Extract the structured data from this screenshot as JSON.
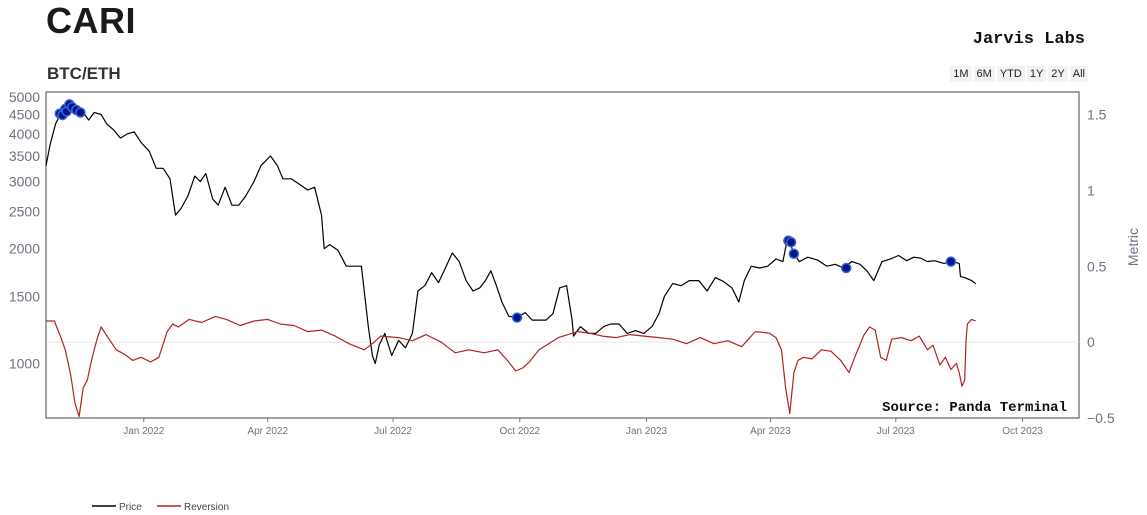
{
  "header": {
    "title": "CARI",
    "subtitle": "BTC/ETH",
    "brand": "Jarvis Labs",
    "source_note": "Source: Panda Terminal"
  },
  "range_buttons": [
    "1M",
    "6M",
    "YTD",
    "1Y",
    "2Y",
    "All"
  ],
  "colors": {
    "price": "#000000",
    "reversion": "#b22222",
    "markers": "#00158a",
    "marker_highlight": "#3b63d6"
  },
  "chart_data": {
    "type": "line",
    "title": "BTC/ETH",
    "x_tick_labels": [
      "Jan 2022",
      "Apr 2022",
      "Jul 2022",
      "Oct 2022",
      "Jan 2023",
      "Apr 2023",
      "Jul 2023",
      "Oct 2023"
    ],
    "x_ticks": [
      "2022-01-01",
      "2022-04-01",
      "2022-07-01",
      "2022-10-01",
      "2023-01-01",
      "2023-04-01",
      "2023-07-01",
      "2023-10-01"
    ],
    "xlim": [
      "2021-10-22",
      "2023-11-11"
    ],
    "y_left": {
      "scale": "log",
      "lim": [
        720,
        5150
      ],
      "ticks": [
        1000,
        1500,
        2000,
        2500,
        3000,
        3500,
        4000,
        4500,
        5000
      ]
    },
    "y_right": {
      "label": "Metric",
      "lim": [
        -0.5,
        1.65
      ],
      "ticks": [
        -0.5,
        0,
        0.5,
        1,
        1.5
      ],
      "tick_labels": [
        "−0.5",
        "0",
        "0.5",
        "1",
        "1.5"
      ]
    },
    "legend": {
      "position": "bottom-left",
      "entries": [
        "Price",
        "Reversion"
      ]
    },
    "series": [
      {
        "name": "Price",
        "axis": "left",
        "points": [
          [
            "2021-10-22",
            3300
          ],
          [
            "2021-10-25",
            3750
          ],
          [
            "2021-10-29",
            4250
          ],
          [
            "2021-11-02",
            4550
          ],
          [
            "2021-11-06",
            4620
          ],
          [
            "2021-11-08",
            4750
          ],
          [
            "2021-11-10",
            4700
          ],
          [
            "2021-11-14",
            4600
          ],
          [
            "2021-11-18",
            4550
          ],
          [
            "2021-11-22",
            4350
          ],
          [
            "2021-11-26",
            4550
          ],
          [
            "2021-12-01",
            4500
          ],
          [
            "2021-12-05",
            4250
          ],
          [
            "2021-12-10",
            4100
          ],
          [
            "2021-12-15",
            3900
          ],
          [
            "2021-12-20",
            4000
          ],
          [
            "2021-12-25",
            4050
          ],
          [
            "2021-12-30",
            3800
          ],
          [
            "2022-01-05",
            3600
          ],
          [
            "2022-01-10",
            3250
          ],
          [
            "2022-01-15",
            3250
          ],
          [
            "2022-01-20",
            3050
          ],
          [
            "2022-01-24",
            2450
          ],
          [
            "2022-01-28",
            2550
          ],
          [
            "2022-02-02",
            2750
          ],
          [
            "2022-02-07",
            3100
          ],
          [
            "2022-02-11",
            3000
          ],
          [
            "2022-02-15",
            3150
          ],
          [
            "2022-02-20",
            2700
          ],
          [
            "2022-02-24",
            2600
          ],
          [
            "2022-03-01",
            2900
          ],
          [
            "2022-03-06",
            2600
          ],
          [
            "2022-03-11",
            2600
          ],
          [
            "2022-03-16",
            2750
          ],
          [
            "2022-03-22",
            3000
          ],
          [
            "2022-03-27",
            3300
          ],
          [
            "2022-04-03",
            3500
          ],
          [
            "2022-04-08",
            3300
          ],
          [
            "2022-04-12",
            3050
          ],
          [
            "2022-04-18",
            3050
          ],
          [
            "2022-04-24",
            2950
          ],
          [
            "2022-04-30",
            2850
          ],
          [
            "2022-05-05",
            2900
          ],
          [
            "2022-05-10",
            2450
          ],
          [
            "2022-05-12",
            2000
          ],
          [
            "2022-05-16",
            2050
          ],
          [
            "2022-05-22",
            1980
          ],
          [
            "2022-05-28",
            1800
          ],
          [
            "2022-06-03",
            1800
          ],
          [
            "2022-06-08",
            1800
          ],
          [
            "2022-06-13",
            1250
          ],
          [
            "2022-06-16",
            1050
          ],
          [
            "2022-06-18",
            1000
          ],
          [
            "2022-06-21",
            1120
          ],
          [
            "2022-06-25",
            1200
          ],
          [
            "2022-06-30",
            1050
          ],
          [
            "2022-07-05",
            1150
          ],
          [
            "2022-07-10",
            1100
          ],
          [
            "2022-07-15",
            1200
          ],
          [
            "2022-07-19",
            1550
          ],
          [
            "2022-07-24",
            1600
          ],
          [
            "2022-07-29",
            1730
          ],
          [
            "2022-08-03",
            1630
          ],
          [
            "2022-08-08",
            1780
          ],
          [
            "2022-08-13",
            1950
          ],
          [
            "2022-08-18",
            1850
          ],
          [
            "2022-08-23",
            1650
          ],
          [
            "2022-08-28",
            1550
          ],
          [
            "2022-09-02",
            1580
          ],
          [
            "2022-09-06",
            1650
          ],
          [
            "2022-09-10",
            1750
          ],
          [
            "2022-09-14",
            1600
          ],
          [
            "2022-09-18",
            1450
          ],
          [
            "2022-09-23",
            1330
          ],
          [
            "2022-09-29",
            1320
          ],
          [
            "2022-10-05",
            1360
          ],
          [
            "2022-10-10",
            1300
          ],
          [
            "2022-10-15",
            1300
          ],
          [
            "2022-10-20",
            1300
          ],
          [
            "2022-10-25",
            1350
          ],
          [
            "2022-10-30",
            1580
          ],
          [
            "2022-11-04",
            1600
          ],
          [
            "2022-11-08",
            1300
          ],
          [
            "2022-11-09",
            1180
          ],
          [
            "2022-11-14",
            1250
          ],
          [
            "2022-11-20",
            1200
          ],
          [
            "2022-11-25",
            1200
          ],
          [
            "2022-12-01",
            1250
          ],
          [
            "2022-12-06",
            1270
          ],
          [
            "2022-12-12",
            1270
          ],
          [
            "2022-12-18",
            1200
          ],
          [
            "2022-12-24",
            1220
          ],
          [
            "2022-12-30",
            1200
          ],
          [
            "2023-01-05",
            1250
          ],
          [
            "2023-01-10",
            1350
          ],
          [
            "2023-01-14",
            1500
          ],
          [
            "2023-01-20",
            1620
          ],
          [
            "2023-01-26",
            1600
          ],
          [
            "2023-02-01",
            1650
          ],
          [
            "2023-02-08",
            1650
          ],
          [
            "2023-02-14",
            1550
          ],
          [
            "2023-02-20",
            1680
          ],
          [
            "2023-02-26",
            1640
          ],
          [
            "2023-03-04",
            1580
          ],
          [
            "2023-03-09",
            1450
          ],
          [
            "2023-03-13",
            1650
          ],
          [
            "2023-03-18",
            1800
          ],
          [
            "2023-03-24",
            1780
          ],
          [
            "2023-03-30",
            1800
          ],
          [
            "2023-04-05",
            1880
          ],
          [
            "2023-04-10",
            1850
          ],
          [
            "2023-04-13",
            2100
          ],
          [
            "2023-04-15",
            2080
          ],
          [
            "2023-04-18",
            1940
          ],
          [
            "2023-04-22",
            1850
          ],
          [
            "2023-04-28",
            1900
          ],
          [
            "2023-05-05",
            1870
          ],
          [
            "2023-05-12",
            1800
          ],
          [
            "2023-05-18",
            1820
          ],
          [
            "2023-05-24",
            1780
          ],
          [
            "2023-05-30",
            1850
          ],
          [
            "2023-06-05",
            1820
          ],
          [
            "2023-06-10",
            1750
          ],
          [
            "2023-06-15",
            1650
          ],
          [
            "2023-06-21",
            1850
          ],
          [
            "2023-06-27",
            1880
          ],
          [
            "2023-07-03",
            1920
          ],
          [
            "2023-07-09",
            1860
          ],
          [
            "2023-07-14",
            1900
          ],
          [
            "2023-07-19",
            1890
          ],
          [
            "2023-07-24",
            1850
          ],
          [
            "2023-07-29",
            1860
          ],
          [
            "2023-08-05",
            1830
          ],
          [
            "2023-08-11",
            1850
          ],
          [
            "2023-08-16",
            1830
          ],
          [
            "2023-08-17",
            1690
          ],
          [
            "2023-08-20",
            1680
          ],
          [
            "2023-08-25",
            1650
          ],
          [
            "2023-08-28",
            1620
          ]
        ]
      },
      {
        "name": "Reversion",
        "axis": "right",
        "points": [
          [
            "2021-10-22",
            0.14
          ],
          [
            "2021-10-28",
            0.14
          ],
          [
            "2021-11-01",
            0.05
          ],
          [
            "2021-11-05",
            -0.05
          ],
          [
            "2021-11-09",
            -0.22
          ],
          [
            "2021-11-12",
            -0.4
          ],
          [
            "2021-11-15",
            -0.49
          ],
          [
            "2021-11-18",
            -0.3
          ],
          [
            "2021-11-21",
            -0.25
          ],
          [
            "2021-11-24",
            -0.12
          ],
          [
            "2021-11-28",
            0.02
          ],
          [
            "2021-12-01",
            0.1
          ],
          [
            "2021-12-06",
            0.03
          ],
          [
            "2021-12-12",
            -0.05
          ],
          [
            "2021-12-18",
            -0.08
          ],
          [
            "2021-12-24",
            -0.12
          ],
          [
            "2021-12-30",
            -0.1
          ],
          [
            "2022-01-06",
            -0.13
          ],
          [
            "2022-01-12",
            -0.1
          ],
          [
            "2022-01-18",
            0.07
          ],
          [
            "2022-01-22",
            0.12
          ],
          [
            "2022-01-26",
            0.1
          ],
          [
            "2022-02-03",
            0.15
          ],
          [
            "2022-02-12",
            0.13
          ],
          [
            "2022-02-22",
            0.17
          ],
          [
            "2022-03-02",
            0.15
          ],
          [
            "2022-03-12",
            0.11
          ],
          [
            "2022-03-22",
            0.14
          ],
          [
            "2022-04-01",
            0.15
          ],
          [
            "2022-04-10",
            0.12
          ],
          [
            "2022-04-20",
            0.11
          ],
          [
            "2022-04-30",
            0.07
          ],
          [
            "2022-05-10",
            0.08
          ],
          [
            "2022-05-20",
            0.04
          ],
          [
            "2022-05-30",
            -0.01
          ],
          [
            "2022-06-10",
            -0.05
          ],
          [
            "2022-06-16",
            -0.01
          ],
          [
            "2022-06-22",
            0.04
          ],
          [
            "2022-07-05",
            0.03
          ],
          [
            "2022-07-15",
            0.01
          ],
          [
            "2022-07-25",
            0.05
          ],
          [
            "2022-08-05",
            0.0
          ],
          [
            "2022-08-15",
            -0.07
          ],
          [
            "2022-08-25",
            -0.05
          ],
          [
            "2022-09-05",
            -0.07
          ],
          [
            "2022-09-15",
            -0.05
          ],
          [
            "2022-09-22",
            -0.12
          ],
          [
            "2022-09-28",
            -0.19
          ],
          [
            "2022-10-03",
            -0.17
          ],
          [
            "2022-10-08",
            -0.13
          ],
          [
            "2022-10-15",
            -0.05
          ],
          [
            "2022-10-22",
            -0.01
          ],
          [
            "2022-10-29",
            0.03
          ],
          [
            "2022-11-05",
            0.05
          ],
          [
            "2022-11-12",
            0.07
          ],
          [
            "2022-11-20",
            0.06
          ],
          [
            "2022-11-30",
            0.04
          ],
          [
            "2022-12-10",
            0.03
          ],
          [
            "2022-12-20",
            0.05
          ],
          [
            "2022-12-30",
            0.04
          ],
          [
            "2023-01-10",
            0.03
          ],
          [
            "2023-01-20",
            0.02
          ],
          [
            "2023-01-30",
            -0.01
          ],
          [
            "2023-02-09",
            0.03
          ],
          [
            "2023-02-19",
            -0.01
          ],
          [
            "2023-03-01",
            0.01
          ],
          [
            "2023-03-11",
            -0.03
          ],
          [
            "2023-03-21",
            0.07
          ],
          [
            "2023-03-31",
            0.06
          ],
          [
            "2023-04-05",
            0.03
          ],
          [
            "2023-04-09",
            -0.05
          ],
          [
            "2023-04-12",
            -0.3
          ],
          [
            "2023-04-15",
            -0.47
          ],
          [
            "2023-04-18",
            -0.2
          ],
          [
            "2023-04-21",
            -0.12
          ],
          [
            "2023-04-25",
            -0.1
          ],
          [
            "2023-05-01",
            -0.11
          ],
          [
            "2023-05-08",
            -0.05
          ],
          [
            "2023-05-15",
            -0.06
          ],
          [
            "2023-05-22",
            -0.12
          ],
          [
            "2023-05-28",
            -0.2
          ],
          [
            "2023-06-02",
            -0.08
          ],
          [
            "2023-06-08",
            0.05
          ],
          [
            "2023-06-12",
            0.1
          ],
          [
            "2023-06-16",
            0.08
          ],
          [
            "2023-06-20",
            -0.1
          ],
          [
            "2023-06-24",
            -0.12
          ],
          [
            "2023-06-28",
            0.02
          ],
          [
            "2023-07-05",
            0.03
          ],
          [
            "2023-07-12",
            0.01
          ],
          [
            "2023-07-18",
            0.04
          ],
          [
            "2023-07-24",
            -0.05
          ],
          [
            "2023-07-28",
            -0.02
          ],
          [
            "2023-08-02",
            -0.15
          ],
          [
            "2023-08-06",
            -0.1
          ],
          [
            "2023-08-10",
            -0.18
          ],
          [
            "2023-08-14",
            -0.14
          ],
          [
            "2023-08-16",
            -0.2
          ],
          [
            "2023-08-18",
            -0.29
          ],
          [
            "2023-08-20",
            -0.25
          ],
          [
            "2023-08-21",
            0.02
          ],
          [
            "2023-08-22",
            0.12
          ],
          [
            "2023-08-25",
            0.15
          ],
          [
            "2023-08-28",
            0.14
          ]
        ]
      },
      {
        "name": "",
        "type": "scatter",
        "axis": "left",
        "points": [
          [
            "2021-11-01",
            4520
          ],
          [
            "2021-11-03",
            4480
          ],
          [
            "2021-11-05",
            4650
          ],
          [
            "2021-11-06",
            4580
          ],
          [
            "2021-11-08",
            4780
          ],
          [
            "2021-11-10",
            4700
          ],
          [
            "2021-11-13",
            4620
          ],
          [
            "2021-11-16",
            4550
          ],
          [
            "2022-09-29",
            1320
          ],
          [
            "2023-04-14",
            2100
          ],
          [
            "2023-04-16",
            2080
          ],
          [
            "2023-04-18",
            1940
          ],
          [
            "2023-05-26",
            1780
          ],
          [
            "2023-08-10",
            1850
          ]
        ]
      }
    ]
  }
}
